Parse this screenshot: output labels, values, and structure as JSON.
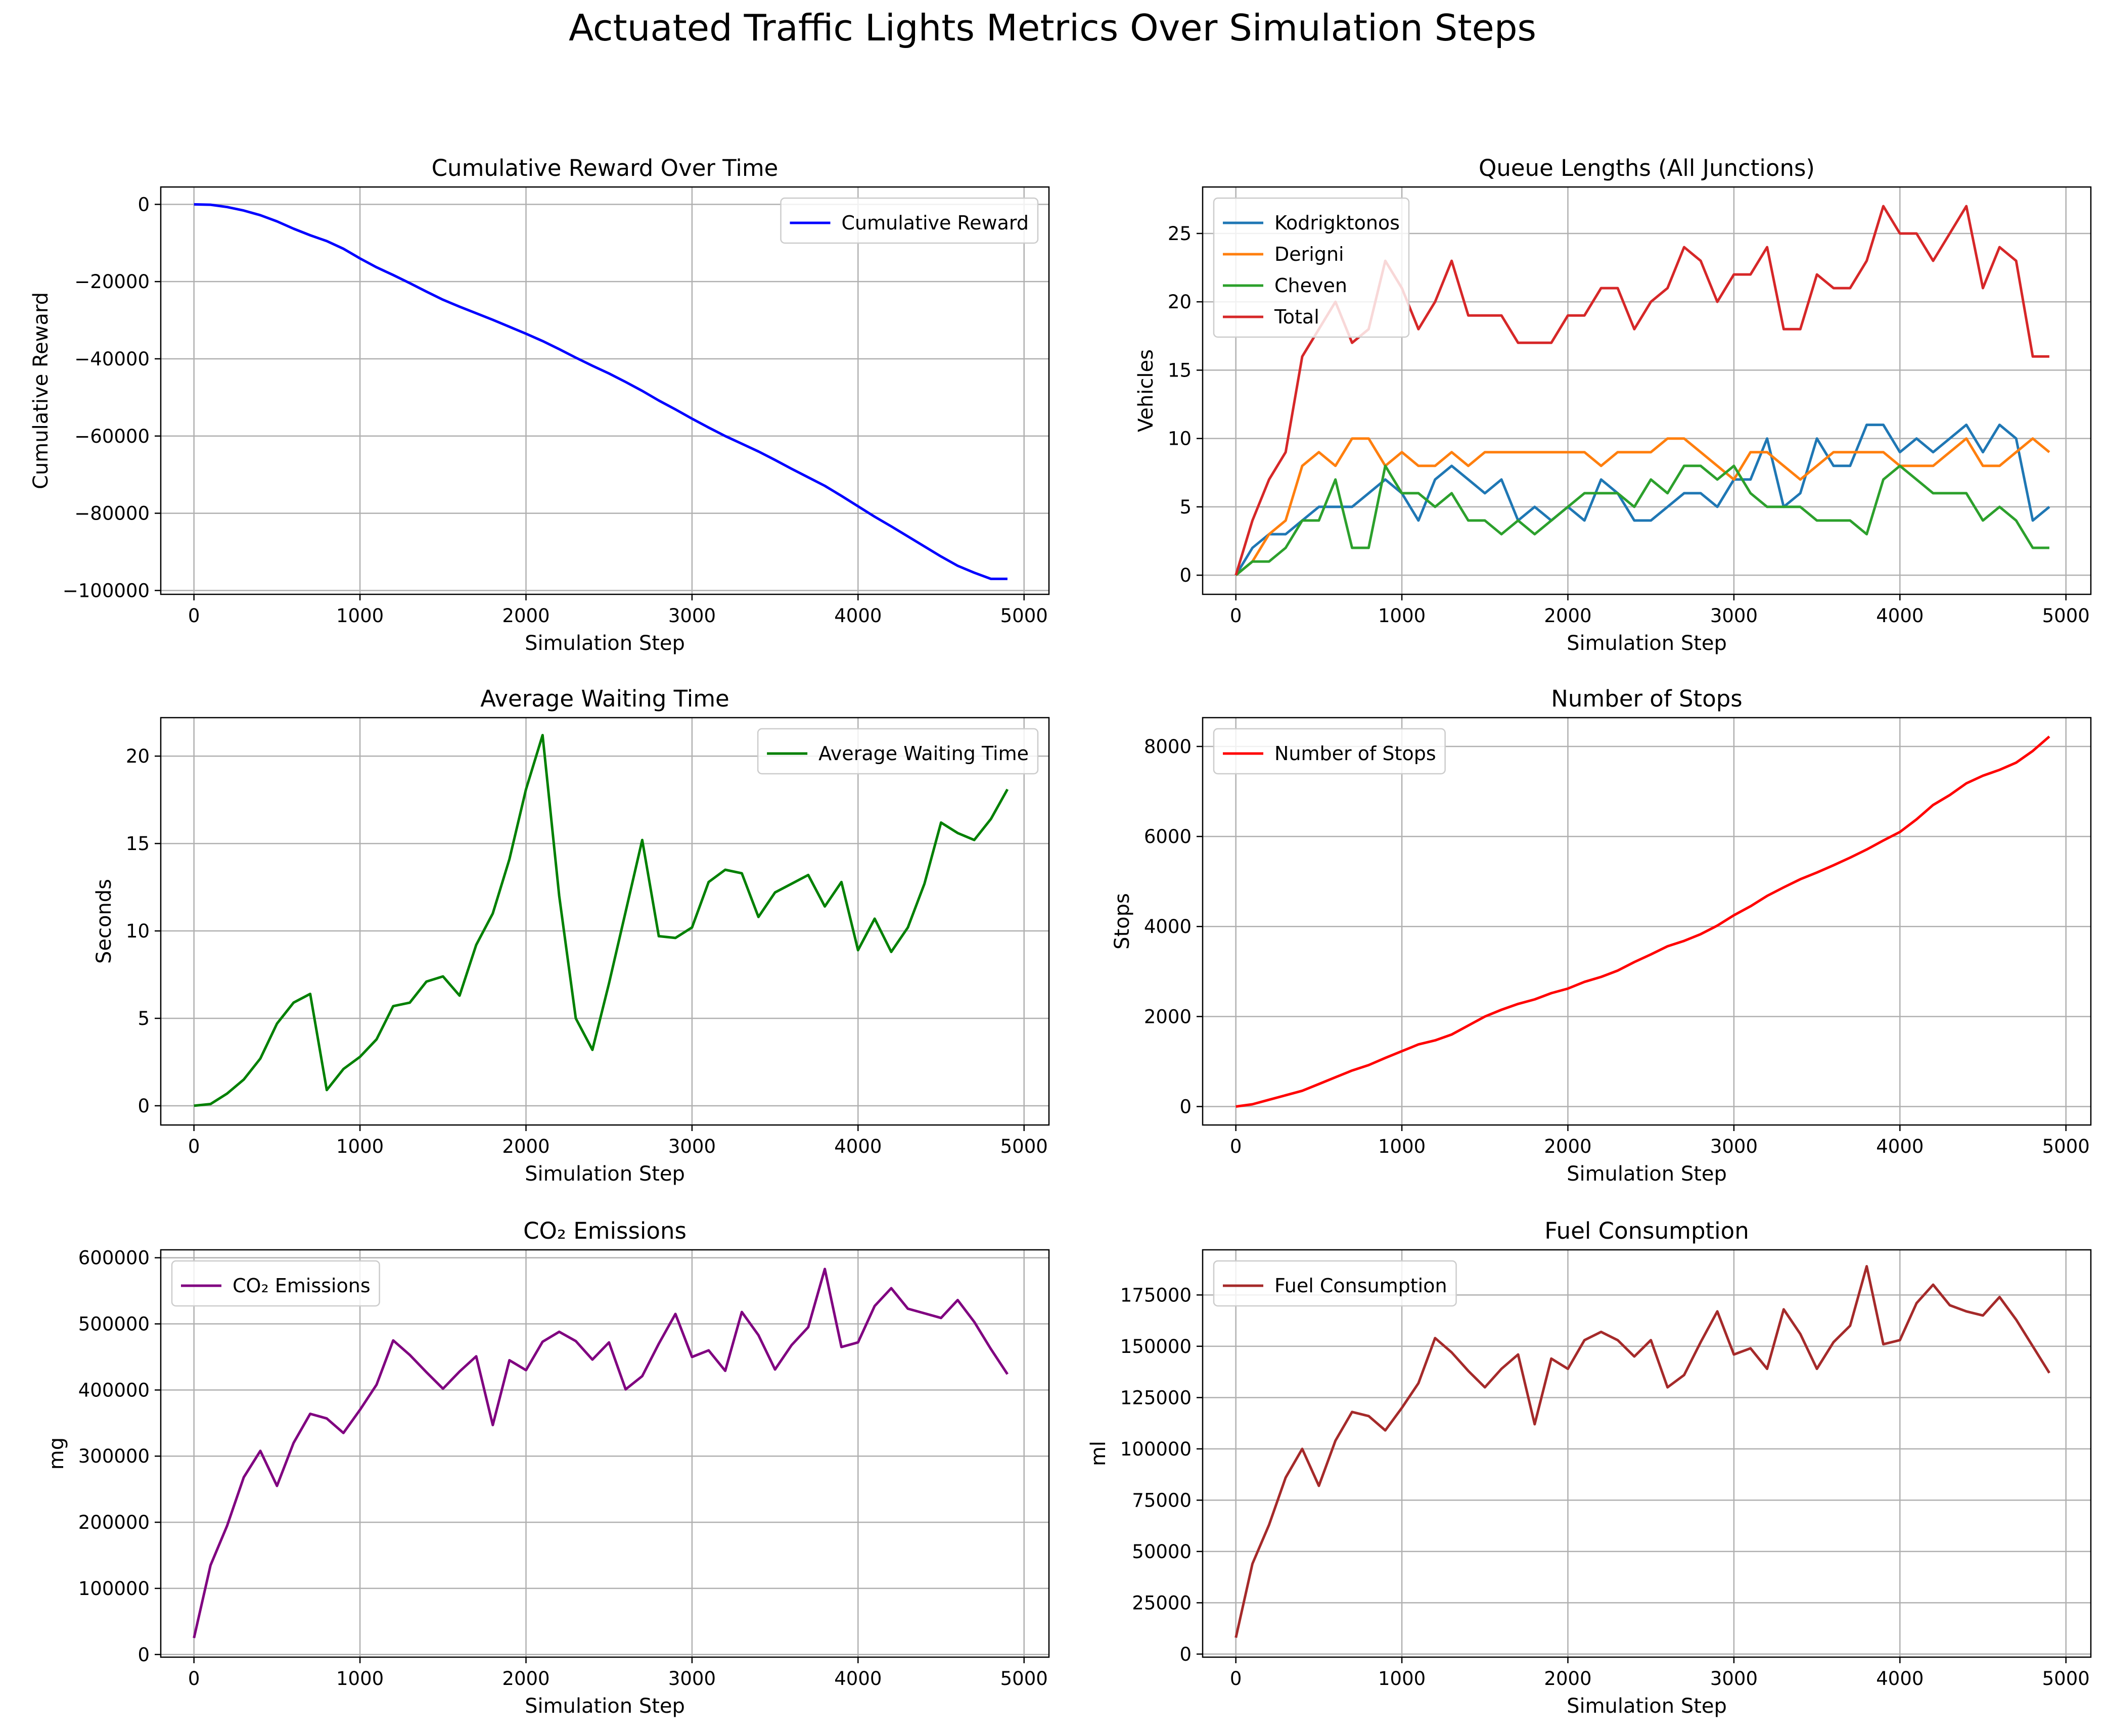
{
  "figure_title": "Actuated Traffic Lights Metrics Over Simulation Steps",
  "chart_data": [
    {
      "id": "reward",
      "type": "line",
      "title": "Cumulative Reward Over Time",
      "xlabel": "Simulation Step",
      "ylabel": "Cumulative Reward",
      "xlim": [
        -200,
        5150
      ],
      "ylim": [
        -101000,
        4500
      ],
      "xticks": [
        0,
        1000,
        2000,
        3000,
        4000,
        5000
      ],
      "xtick_labels": [
        "0",
        "1000",
        "2000",
        "3000",
        "4000",
        "5000"
      ],
      "yticks": [
        0,
        -20000,
        -40000,
        -60000,
        -80000,
        -100000
      ],
      "ytick_labels": [
        "0",
        "−20000",
        "−40000",
        "−60000",
        "−80000",
        "−100000"
      ],
      "grid": true,
      "legend_position": "top-right",
      "x": [
        0,
        100,
        200,
        300,
        400,
        500,
        600,
        700,
        800,
        900,
        1000,
        1100,
        1200,
        1300,
        1400,
        1500,
        1600,
        1700,
        1800,
        1900,
        2000,
        2100,
        2200,
        2300,
        2400,
        2500,
        2600,
        2700,
        2800,
        2900,
        3000,
        3100,
        3200,
        3300,
        3400,
        3500,
        3600,
        3700,
        3800,
        3900,
        4000,
        4100,
        4200,
        4300,
        4400,
        4500,
        4600,
        4700,
        4800,
        4900
      ],
      "series": [
        {
          "name": "Cumulative Reward",
          "color": "#0000ff",
          "values": [
            0,
            -100,
            -700,
            -1600,
            -2800,
            -4400,
            -6300,
            -8000,
            -9500,
            -11500,
            -14000,
            -16300,
            -18300,
            -20400,
            -22600,
            -24700,
            -26500,
            -28200,
            -29900,
            -31700,
            -33500,
            -35400,
            -37500,
            -39700,
            -41800,
            -43800,
            -46000,
            -48300,
            -50800,
            -53100,
            -55500,
            -57800,
            -60000,
            -62000,
            -64000,
            -66200,
            -68500,
            -70700,
            -72900,
            -75500,
            -78200,
            -80900,
            -83400,
            -86000,
            -88600,
            -91200,
            -93600,
            -95400,
            -97000,
            -97000
          ]
        }
      ]
    },
    {
      "id": "queue",
      "type": "line",
      "title": "Queue Lengths (All Junctions)",
      "xlabel": "Simulation Step",
      "ylabel": "Vehicles",
      "xlim": [
        -200,
        5150
      ],
      "ylim": [
        -1.4,
        28.4
      ],
      "xticks": [
        0,
        1000,
        2000,
        3000,
        4000,
        5000
      ],
      "xtick_labels": [
        "0",
        "1000",
        "2000",
        "3000",
        "4000",
        "5000"
      ],
      "yticks": [
        0,
        5,
        10,
        15,
        20,
        25
      ],
      "ytick_labels": [
        "0",
        "5",
        "10",
        "15",
        "20",
        "25"
      ],
      "grid": true,
      "legend_position": "top-left",
      "x": [
        0,
        100,
        200,
        300,
        400,
        500,
        600,
        700,
        800,
        900,
        1000,
        1100,
        1200,
        1300,
        1400,
        1500,
        1600,
        1700,
        1800,
        1900,
        2000,
        2100,
        2200,
        2300,
        2400,
        2500,
        2600,
        2700,
        2800,
        2900,
        3000,
        3100,
        3200,
        3300,
        3400,
        3500,
        3600,
        3700,
        3800,
        3900,
        4000,
        4100,
        4200,
        4300,
        4400,
        4500,
        4600,
        4700,
        4800,
        4900
      ],
      "series": [
        {
          "name": "Kodrigktonos",
          "color": "#1f77b4",
          "values": [
            0,
            2,
            3,
            3,
            4,
            5,
            5,
            5,
            6,
            7,
            6,
            4,
            7,
            8,
            7,
            6,
            7,
            4,
            5,
            4,
            5,
            4,
            7,
            6,
            4,
            4,
            5,
            6,
            6,
            5,
            7,
            7,
            10,
            5,
            6,
            10,
            8,
            8,
            11,
            11,
            9,
            10,
            9,
            10,
            11,
            9,
            11,
            10,
            4,
            5
          ]
        },
        {
          "name": "Derigni",
          "color": "#ff7f0e",
          "values": [
            0,
            1,
            3,
            4,
            8,
            9,
            8,
            10,
            10,
            8,
            9,
            8,
            8,
            9,
            8,
            9,
            9,
            9,
            9,
            9,
            9,
            9,
            8,
            9,
            9,
            9,
            10,
            10,
            9,
            8,
            7,
            9,
            9,
            8,
            7,
            8,
            9,
            9,
            9,
            9,
            8,
            8,
            8,
            9,
            10,
            8,
            8,
            9,
            10,
            9
          ]
        },
        {
          "name": "Cheven",
          "color": "#2ca02c",
          "values": [
            0,
            1,
            1,
            2,
            4,
            4,
            7,
            2,
            2,
            8,
            6,
            6,
            5,
            6,
            4,
            4,
            3,
            4,
            3,
            4,
            5,
            6,
            6,
            6,
            5,
            7,
            6,
            8,
            8,
            7,
            8,
            6,
            5,
            5,
            5,
            4,
            4,
            4,
            3,
            7,
            8,
            7,
            6,
            6,
            6,
            4,
            5,
            4,
            2,
            2
          ]
        },
        {
          "name": "Total",
          "color": "#d62728",
          "values": [
            0,
            4,
            7,
            9,
            16,
            18,
            20,
            17,
            18,
            23,
            21,
            18,
            20,
            23,
            19,
            19,
            19,
            17,
            17,
            17,
            19,
            19,
            21,
            21,
            18,
            20,
            21,
            24,
            23,
            20,
            22,
            22,
            24,
            18,
            18,
            22,
            21,
            21,
            23,
            27,
            25,
            25,
            23,
            25,
            27,
            21,
            24,
            23,
            16,
            16
          ]
        }
      ]
    },
    {
      "id": "waiting",
      "type": "line",
      "title": "Average Waiting Time",
      "xlabel": "Simulation Step",
      "ylabel": "Seconds",
      "xlim": [
        -200,
        5150
      ],
      "ylim": [
        -1.1,
        22.2
      ],
      "xticks": [
        0,
        1000,
        2000,
        3000,
        4000,
        5000
      ],
      "xtick_labels": [
        "0",
        "1000",
        "2000",
        "3000",
        "4000",
        "5000"
      ],
      "yticks": [
        0,
        5,
        10,
        15,
        20
      ],
      "ytick_labels": [
        "0",
        "5",
        "10",
        "15",
        "20"
      ],
      "grid": true,
      "legend_position": "top-right",
      "x": [
        0,
        100,
        200,
        300,
        400,
        500,
        600,
        700,
        800,
        900,
        1000,
        1100,
        1200,
        1300,
        1400,
        1500,
        1600,
        1700,
        1800,
        1900,
        2000,
        2100,
        2200,
        2300,
        2400,
        2500,
        2600,
        2700,
        2800,
        2900,
        3000,
        3100,
        3200,
        3300,
        3400,
        3500,
        3600,
        3700,
        3800,
        3900,
        4000,
        4100,
        4200,
        4300,
        4400,
        4500,
        4600,
        4700,
        4800,
        4900
      ],
      "series": [
        {
          "name": "Average Waiting Time",
          "color": "#008000",
          "values": [
            0,
            0.1,
            0.7,
            1.5,
            2.7,
            4.7,
            5.9,
            6.4,
            0.9,
            2.1,
            2.8,
            3.8,
            5.7,
            5.9,
            7.1,
            7.4,
            6.3,
            9.2,
            11.0,
            14.1,
            18.1,
            21.2,
            12.0,
            5.0,
            3.2,
            7.0,
            11.1,
            15.2,
            9.7,
            9.6,
            10.2,
            12.8,
            13.5,
            13.3,
            10.8,
            12.2,
            12.7,
            13.2,
            11.4,
            12.8,
            8.9,
            10.7,
            8.8,
            10.2,
            12.7,
            16.2,
            15.6,
            15.2,
            16.4,
            18.1
          ]
        }
      ]
    },
    {
      "id": "stops",
      "type": "line",
      "title": "Number of Stops",
      "xlabel": "Simulation Step",
      "ylabel": "Stops",
      "xlim": [
        -200,
        5150
      ],
      "ylim": [
        -410,
        8640
      ],
      "xticks": [
        0,
        1000,
        2000,
        3000,
        4000,
        5000
      ],
      "xtick_labels": [
        "0",
        "1000",
        "2000",
        "3000",
        "4000",
        "5000"
      ],
      "yticks": [
        0,
        2000,
        4000,
        6000,
        8000
      ],
      "ytick_labels": [
        "0",
        "2000",
        "4000",
        "6000",
        "8000"
      ],
      "grid": true,
      "legend_position": "top-left",
      "x": [
        0,
        100,
        200,
        300,
        400,
        500,
        600,
        700,
        800,
        900,
        1000,
        1100,
        1200,
        1300,
        1400,
        1500,
        1600,
        1700,
        1800,
        1900,
        2000,
        2100,
        2200,
        2300,
        2400,
        2500,
        2600,
        2700,
        2800,
        2900,
        3000,
        3100,
        3200,
        3300,
        3400,
        3500,
        3600,
        3700,
        3800,
        3900,
        4000,
        4100,
        4200,
        4300,
        4400,
        4500,
        4600,
        4700,
        4800,
        4900
      ],
      "series": [
        {
          "name": "Number of Stops",
          "color": "#ff0000",
          "values": [
            0,
            50,
            150,
            250,
            350,
            500,
            650,
            800,
            920,
            1080,
            1230,
            1380,
            1470,
            1600,
            1800,
            2000,
            2150,
            2280,
            2380,
            2520,
            2620,
            2770,
            2880,
            3020,
            3210,
            3380,
            3560,
            3680,
            3830,
            4020,
            4250,
            4450,
            4680,
            4870,
            5050,
            5200,
            5360,
            5530,
            5710,
            5910,
            6100,
            6380,
            6700,
            6920,
            7180,
            7350,
            7480,
            7640,
            7900,
            8220
          ]
        }
      ]
    },
    {
      "id": "co2",
      "type": "line",
      "title": "CO₂ Emissions",
      "xlabel": "Simulation Step",
      "ylabel": "mg",
      "xlim": [
        -200,
        5150
      ],
      "ylim": [
        -4000,
        612000
      ],
      "xticks": [
        0,
        1000,
        2000,
        3000,
        4000,
        5000
      ],
      "xtick_labels": [
        "0",
        "1000",
        "2000",
        "3000",
        "4000",
        "5000"
      ],
      "yticks": [
        0,
        100000,
        200000,
        300000,
        400000,
        500000,
        600000
      ],
      "ytick_labels": [
        "0",
        "100000",
        "200000",
        "300000",
        "400000",
        "500000",
        "600000"
      ],
      "grid": true,
      "legend_position": "top-left",
      "x": [
        0,
        100,
        200,
        300,
        400,
        500,
        600,
        700,
        800,
        900,
        1000,
        1100,
        1200,
        1300,
        1400,
        1500,
        1600,
        1700,
        1800,
        1900,
        2000,
        2100,
        2200,
        2300,
        2400,
        2500,
        2600,
        2700,
        2800,
        2900,
        3000,
        3100,
        3200,
        3300,
        3400,
        3500,
        3600,
        3700,
        3800,
        3900,
        4000,
        4100,
        4200,
        4300,
        4400,
        4500,
        4600,
        4700,
        4800,
        4900
      ],
      "series": [
        {
          "name": "CO₂ Emissions",
          "color": "#800080",
          "values": [
            25000,
            135000,
            195000,
            268000,
            308000,
            255000,
            320000,
            364000,
            357000,
            335000,
            370000,
            408000,
            475000,
            453000,
            427000,
            402000,
            428000,
            451000,
            347000,
            445000,
            430000,
            473000,
            488000,
            474000,
            446000,
            472000,
            401000,
            421000,
            470000,
            515000,
            450000,
            460000,
            429000,
            518000,
            483000,
            431000,
            468000,
            495000,
            583000,
            465000,
            472000,
            527000,
            554000,
            523000,
            516000,
            509000,
            536000,
            503000,
            462000,
            424000
          ]
        }
      ]
    },
    {
      "id": "fuel",
      "type": "line",
      "title": "Fuel Consumption",
      "xlabel": "Simulation Step",
      "ylabel": "ml",
      "xlim": [
        -200,
        5150
      ],
      "ylim": [
        -1500,
        197000
      ],
      "xticks": [
        0,
        1000,
        2000,
        3000,
        4000,
        5000
      ],
      "xtick_labels": [
        "0",
        "1000",
        "2000",
        "3000",
        "4000",
        "5000"
      ],
      "yticks": [
        0,
        25000,
        50000,
        75000,
        100000,
        125000,
        150000,
        175000
      ],
      "ytick_labels": [
        "0",
        "25000",
        "50000",
        "75000",
        "100000",
        "125000",
        "150000",
        "175000"
      ],
      "grid": true,
      "legend_position": "top-left",
      "x": [
        0,
        100,
        200,
        300,
        400,
        500,
        600,
        700,
        800,
        900,
        1000,
        1100,
        1200,
        1300,
        1400,
        1500,
        1600,
        1700,
        1800,
        1900,
        2000,
        2100,
        2200,
        2300,
        2400,
        2500,
        2600,
        2700,
        2800,
        2900,
        3000,
        3100,
        3200,
        3300,
        3400,
        3500,
        3600,
        3700,
        3800,
        3900,
        4000,
        4100,
        4200,
        4300,
        4400,
        4500,
        4600,
        4700,
        4800,
        4900
      ],
      "series": [
        {
          "name": "Fuel Consumption",
          "color": "#a52a2a",
          "values": [
            8000,
            44000,
            63000,
            86000,
            100000,
            82000,
            104000,
            118000,
            116000,
            109000,
            120000,
            132000,
            154000,
            147000,
            138000,
            130000,
            139000,
            146000,
            112000,
            144000,
            139000,
            153000,
            157000,
            153000,
            145000,
            153000,
            130000,
            136000,
            152000,
            167000,
            146000,
            149000,
            139000,
            168000,
            156000,
            139000,
            152000,
            160000,
            189000,
            151000,
            153000,
            171000,
            180000,
            170000,
            167000,
            165000,
            174000,
            163000,
            150000,
            137000
          ]
        }
      ]
    }
  ]
}
